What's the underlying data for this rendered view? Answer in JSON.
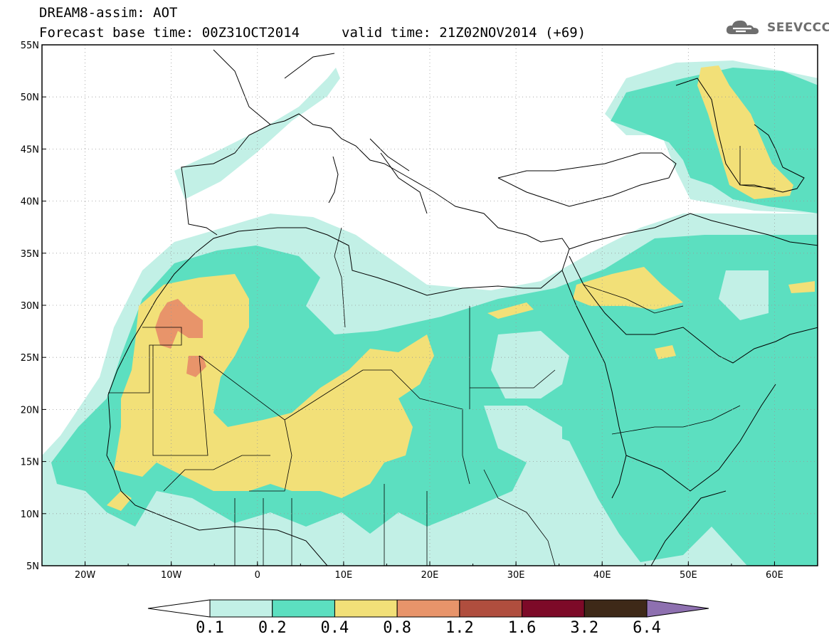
{
  "header": {
    "product": "DREAM8-assim: AOT",
    "base_time": "Forecast base time: 00Z31OCT2014",
    "valid_time": "valid time: 21Z02NOV2014 (+69)"
  },
  "logo": {
    "text": "SEEVCCC",
    "icon": "cloud-icon"
  },
  "map": {
    "lon_ticks": [
      "20W",
      "10W",
      "0",
      "10E",
      "20E",
      "30E",
      "40E",
      "50E",
      "60E"
    ],
    "lat_ticks": [
      "55N",
      "50N",
      "45N",
      "40N",
      "35N",
      "30N",
      "25N",
      "20N",
      "15N",
      "10N",
      "5N"
    ],
    "lon_range": [
      -25,
      65
    ],
    "lat_range": [
      5,
      55
    ]
  },
  "colorbar": {
    "labels": [
      "0.1",
      "0.2",
      "0.4",
      "0.8",
      "1.2",
      "1.6",
      "3.2",
      "6.4"
    ],
    "colors": [
      "#ffffff",
      "#c2f0e6",
      "#5cdfc0",
      "#f2e078",
      "#e8946a",
      "#b04e3e",
      "#7d0a28",
      "#3e2918",
      "#8e70b0"
    ]
  }
}
